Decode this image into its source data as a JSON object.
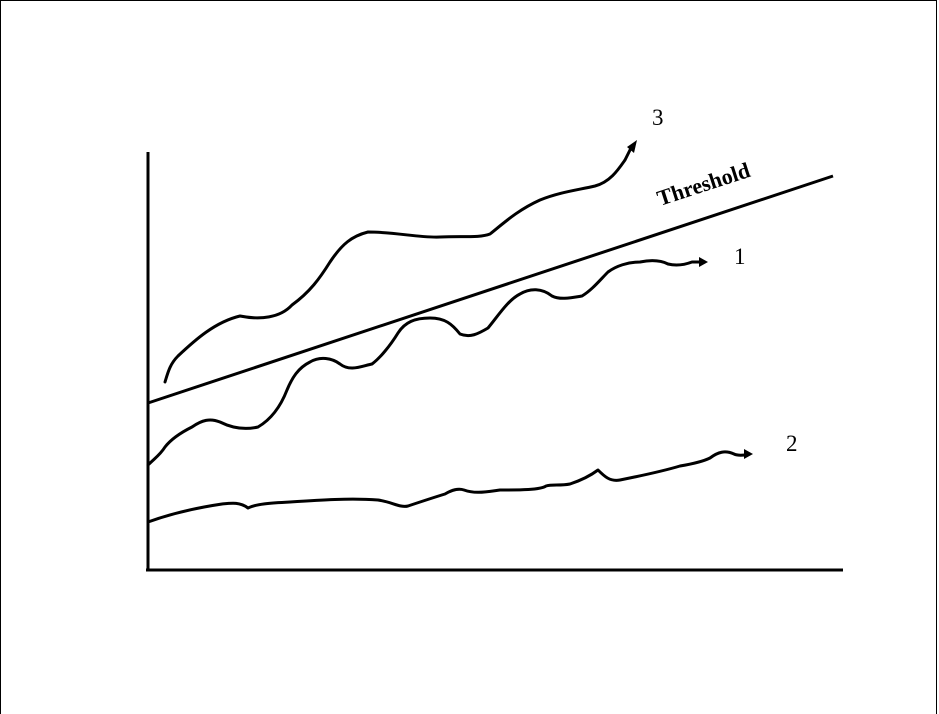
{
  "diagram": {
    "threshold_label": "Threshold",
    "curve_labels": [
      "3",
      "1",
      "2"
    ]
  },
  "colors": {
    "stroke": "#000000",
    "background": "#ffffff"
  }
}
